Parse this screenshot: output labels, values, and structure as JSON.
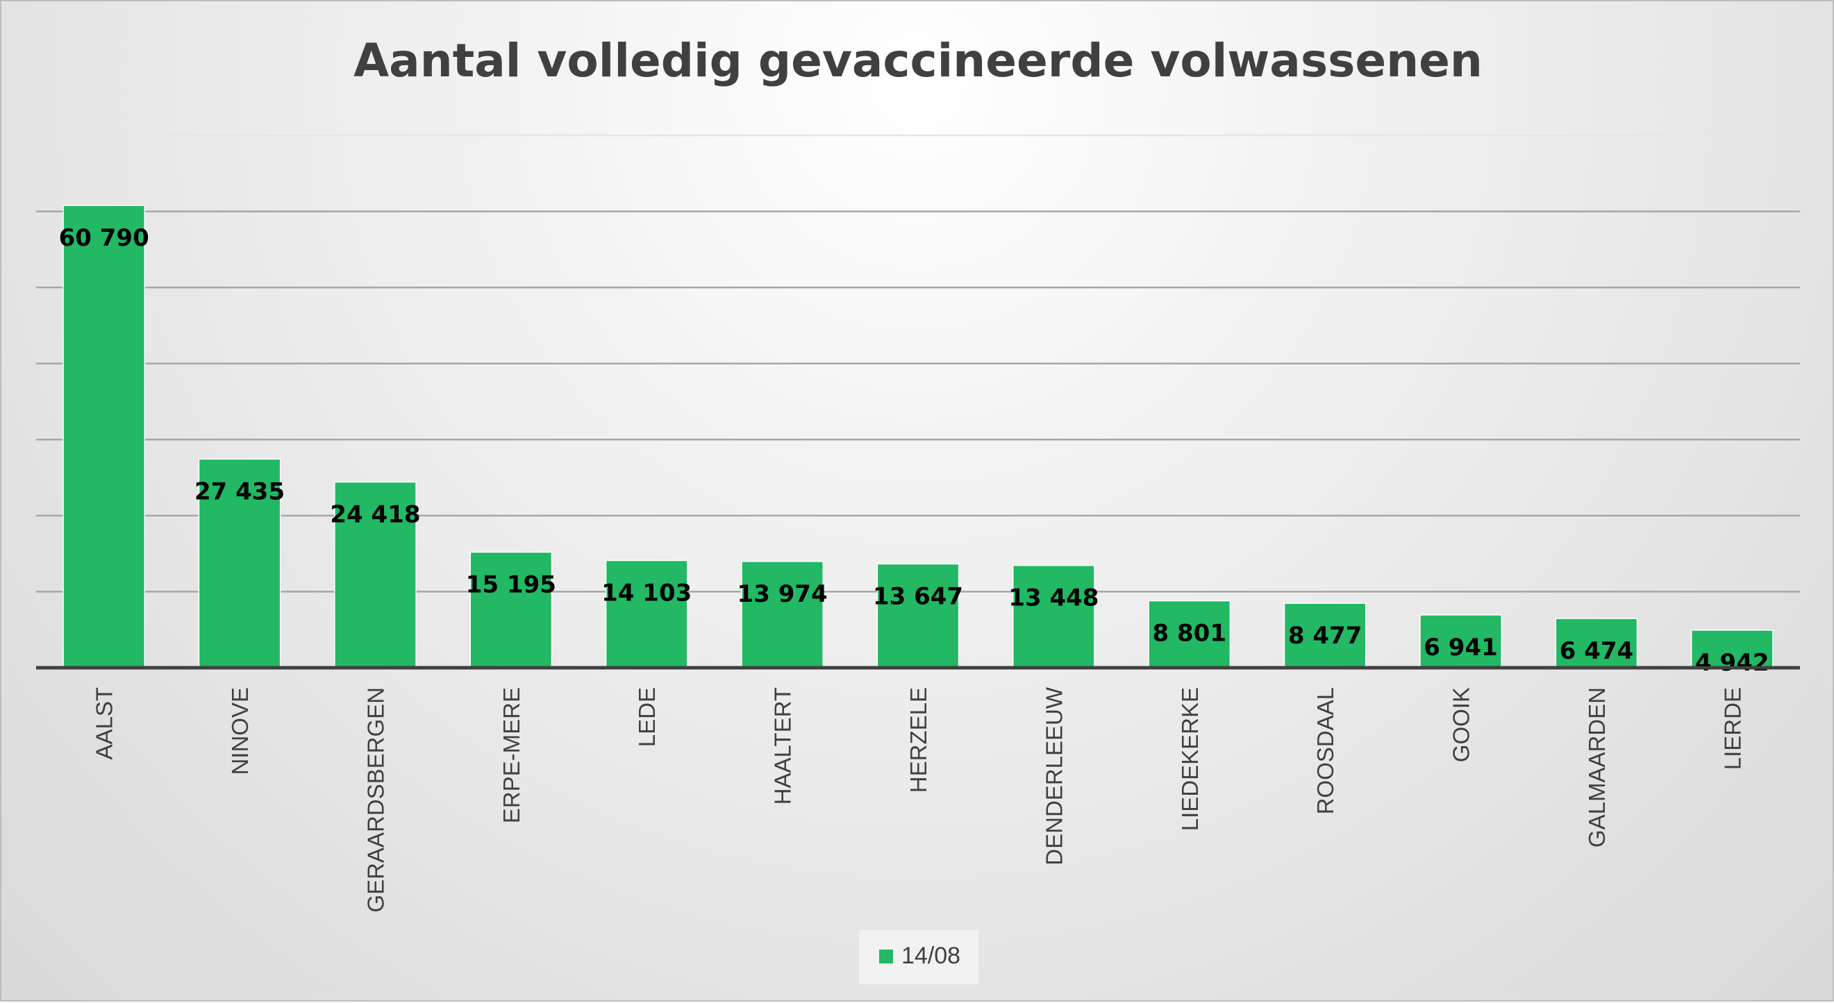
{
  "chart_data": {
    "type": "bar",
    "title": "Aantal volledig gevaccineerde volwassenen",
    "categories": [
      "AALST",
      "NINOVE",
      "GERAARDSBERGEN",
      "ERPE-MERE",
      "LEDE",
      "HAALTERT",
      "HERZELE",
      "DENDERLEEUW",
      "LIEDEKERKE",
      "ROOSDAAL",
      "GOOIK",
      "GALMAARDEN",
      "LIERDE"
    ],
    "series": [
      {
        "name": "14/08",
        "color": "#22b864",
        "values": [
          60790,
          27435,
          24418,
          15195,
          14103,
          13974,
          13647,
          13448,
          8801,
          8477,
          6941,
          6474,
          4942
        ],
        "labels": [
          "60 790",
          "27 435",
          "24 418",
          "15 195",
          "14 103",
          "13 974",
          "13 647",
          "13 448",
          "8 801",
          "8 477",
          "6 941",
          "6 474",
          "4 942"
        ]
      }
    ],
    "ylim": [
      0,
      70000
    ],
    "y_gridline_step": 10000,
    "y_tick_labels_shown": false,
    "grid": true,
    "legend_position": "bottom",
    "xlabel": "",
    "ylabel": ""
  }
}
